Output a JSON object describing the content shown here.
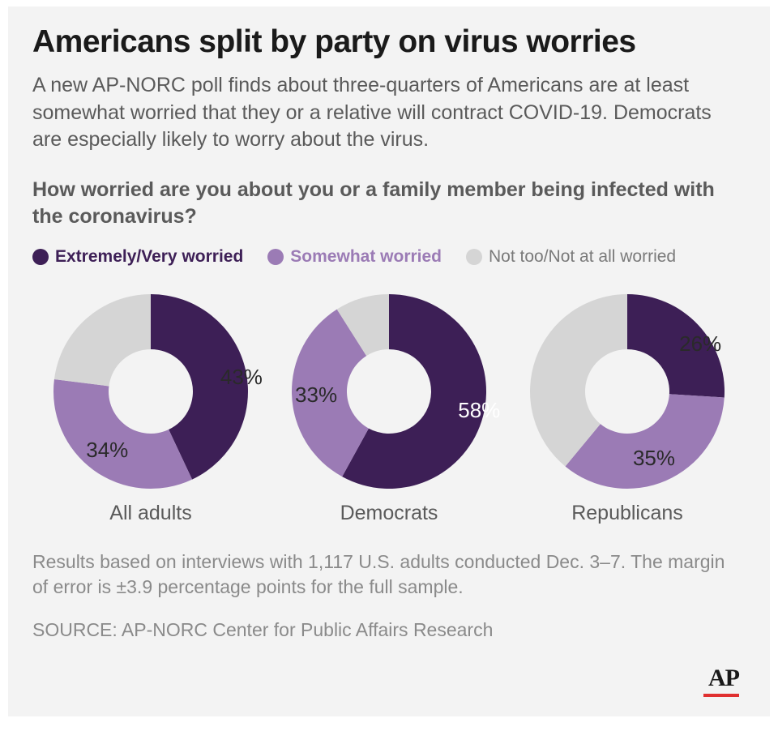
{
  "headline": "Americans split by party on virus worries",
  "subhead": "A new AP-NORC poll finds about three-quarters of Americans are at least somewhat worried that they or a relative will contract COVID-19. Democrats are especially likely to worry about the virus.",
  "question": "How worried are you about you or a family member being infected with the coronavirus?",
  "legend": {
    "extremely": {
      "label": "Extremely/Very worried",
      "color": "#3d1f56"
    },
    "somewhat": {
      "label": "Somewhat worried",
      "color": "#9b7bb5"
    },
    "nottoo": {
      "label": "Not too/Not at all worried",
      "color": "#d5d5d5"
    }
  },
  "charts": [
    {
      "name": "All adults",
      "segments": [
        {
          "key": "extremely",
          "value": 43,
          "show_label": true
        },
        {
          "key": "somewhat",
          "value": 34,
          "show_label": true
        },
        {
          "key": "nottoo",
          "value": 23,
          "show_label": false
        }
      ]
    },
    {
      "name": "Democrats",
      "segments": [
        {
          "key": "extremely",
          "value": 58,
          "show_label": true
        },
        {
          "key": "somewhat",
          "value": 33,
          "show_label": true
        },
        {
          "key": "nottoo",
          "value": 9,
          "show_label": false
        }
      ]
    },
    {
      "name": "Republicans",
      "segments": [
        {
          "key": "extremely",
          "value": 26,
          "show_label": true
        },
        {
          "key": "somewhat",
          "value": 35,
          "show_label": true
        },
        {
          "key": "nottoo",
          "value": 39,
          "show_label": false
        }
      ]
    }
  ],
  "donut": {
    "outer_radius": 120,
    "inner_radius": 52,
    "start_angle_deg": -90,
    "svg_size": 260,
    "label_radius": 88
  },
  "methodology": "Results based on interviews with 1,117 U.S. adults conducted Dec. 3–7. The margin of error is ±3.9 percentage points for the full sample.",
  "source": "SOURCE: AP-NORC Center for Public Affairs Research",
  "logo": {
    "text": "AP",
    "bar_color": "#e03030"
  },
  "background_color": "#f3f3f3"
}
